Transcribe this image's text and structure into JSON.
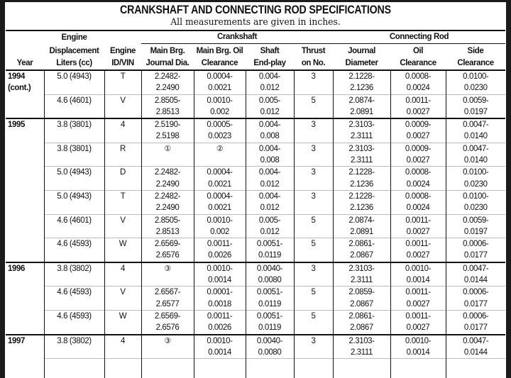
{
  "title": "CRANKSHAFT AND CONNECTING ROD SPECIFICATIONS",
  "subtitle": "All measurements are given in inches.",
  "header": {
    "engine_top": "Engine",
    "crankshaft": "Crankshaft",
    "connecting_rod": "Connecting Rod",
    "columns": [
      [
        "",
        "Year"
      ],
      [
        "Displacement",
        "Liters (cc)"
      ],
      [
        "Engine",
        "ID/VIN"
      ],
      [
        "Main Brg.",
        "Journal Dia."
      ],
      [
        "Main Brg. Oil",
        "Clearance"
      ],
      [
        "Shaft",
        "End-play"
      ],
      [
        "Thrust",
        "on No."
      ],
      [
        "Journal",
        "Diameter"
      ],
      [
        "Oil",
        "Clearance"
      ],
      [
        "Side",
        "Clearance"
      ]
    ]
  },
  "groups": [
    {
      "year": [
        "1994",
        "(cont.)"
      ],
      "rows": [
        [
          "5.0 (4943)",
          "T",
          [
            "2.2482-",
            "2.2490"
          ],
          [
            "0.0004-",
            "0.0021"
          ],
          [
            "0.004-",
            "0.012"
          ],
          "3",
          [
            "2.1228-",
            "2.1236"
          ],
          [
            "0.0008-",
            "0.0024"
          ],
          [
            "0.0100-",
            "0.0230"
          ]
        ],
        [
          "4.6 (4601)",
          "V",
          [
            "2.8505-",
            "2.8513"
          ],
          [
            "0.0010-",
            "0.002"
          ],
          [
            "0.005-",
            "0.012"
          ],
          "5",
          [
            "2.0874-",
            "2.0891"
          ],
          [
            "0.0011-",
            "0.0027"
          ],
          [
            "0.0059-",
            "0.0197"
          ]
        ]
      ]
    },
    {
      "year": [
        "1995"
      ],
      "rows": [
        [
          "3.8 (3801)",
          "4",
          [
            "2.5190-",
            "2.5198"
          ],
          [
            "0.0005-",
            "0.0023"
          ],
          [
            "0.004-",
            "0.008"
          ],
          "3",
          [
            "2.3103-",
            "2.3111"
          ],
          [
            "0.0009-",
            "0.0027"
          ],
          [
            "0.0047-",
            "0.0140"
          ]
        ],
        [
          "3.8 (3801)",
          "R",
          [
            "①"
          ],
          [
            "②"
          ],
          [
            "0.004-",
            "0.008"
          ],
          "3",
          [
            "2.3103-",
            "2.3111"
          ],
          [
            "0.0009-",
            "0.0027"
          ],
          [
            "0.0047-",
            "0.0140"
          ]
        ],
        [
          "5.0 (4943)",
          "D",
          [
            "2.2482-",
            "2.2490"
          ],
          [
            "0.0004-",
            "0.0021"
          ],
          [
            "0.004-",
            "0.012"
          ],
          "3",
          [
            "2.1228-",
            "2.1236"
          ],
          [
            "0.0008-",
            "0.0024"
          ],
          [
            "0.0100-",
            "0.0230"
          ]
        ],
        [
          "5.0 (4943)",
          "T",
          [
            "2.2482-",
            "2.2490"
          ],
          [
            "0.0004-",
            "0.0021"
          ],
          [
            "0.004-",
            "0.012"
          ],
          "3",
          [
            "2.1228-",
            "2.1236"
          ],
          [
            "0.0008-",
            "0.0024"
          ],
          [
            "0.0100-",
            "0.0230"
          ]
        ],
        [
          "4.6 (4601)",
          "V",
          [
            "2.8505-",
            "2.8513"
          ],
          [
            "0.0010-",
            "0.002"
          ],
          [
            "0.005-",
            "0.012"
          ],
          "5",
          [
            "2.0874-",
            "2.0891"
          ],
          [
            "0.0011-",
            "0.0027"
          ],
          [
            "0.0059-",
            "0.0197"
          ]
        ],
        [
          "4.6 (4593)",
          "W",
          [
            "2.6569-",
            "2.6576"
          ],
          [
            "0.0011-",
            "0.0026"
          ],
          [
            "0.0051-",
            "0.0119"
          ],
          "5",
          [
            "2.0861-",
            "2.0867"
          ],
          [
            "0.0011-",
            "0.0027"
          ],
          [
            "0.0006-",
            "0.0177"
          ]
        ]
      ]
    },
    {
      "year": [
        "1996"
      ],
      "rows": [
        [
          "3.8 (3802)",
          "4",
          [
            "③"
          ],
          [
            "0.0010-",
            "0.0014"
          ],
          [
            "0.0040-",
            "0.0080"
          ],
          "3",
          [
            "2.3103-",
            "2.3111"
          ],
          [
            "0.0010-",
            "0.0014"
          ],
          [
            "0.0047-",
            "0.0144"
          ]
        ],
        [
          "4.6 (4593)",
          "V",
          [
            "2.6567-",
            "2.6577"
          ],
          [
            "0.0001-",
            "0.0018"
          ],
          [
            "0.0051-",
            "0.0119"
          ],
          "5",
          [
            "2.0859-",
            "2.0867"
          ],
          [
            "0.0011-",
            "0.0027"
          ],
          [
            "0.0006-",
            "0.0177"
          ]
        ],
        [
          "4.6 (4593)",
          "W",
          [
            "2.6569-",
            "2.6576"
          ],
          [
            "0.0011-",
            "0.0026"
          ],
          [
            "0.0051-",
            "0.0119"
          ],
          "5",
          [
            "2.0861-",
            "2.0867"
          ],
          [
            "0.0011-",
            "0.0027"
          ],
          [
            "0.0006-",
            "0.0177"
          ]
        ]
      ]
    },
    {
      "year": [
        "1997"
      ],
      "rows": [
        [
          "3.8 (3802)",
          "4",
          [
            "③"
          ],
          [
            "0.0010-",
            "0.0014"
          ],
          [
            "0.0040-",
            "0.0080"
          ],
          "3",
          [
            "2.3103-",
            "2.3111"
          ],
          [
            "0.0010-",
            "0.0014"
          ],
          [
            "0.0047-",
            "0.0144"
          ]
        ],
        [
          "",
          "",
          [
            ""
          ],
          [
            ""
          ],
          [
            ""
          ],
          "",
          [
            ""
          ],
          [
            ""
          ],
          [
            ""
          ]
        ]
      ]
    }
  ]
}
